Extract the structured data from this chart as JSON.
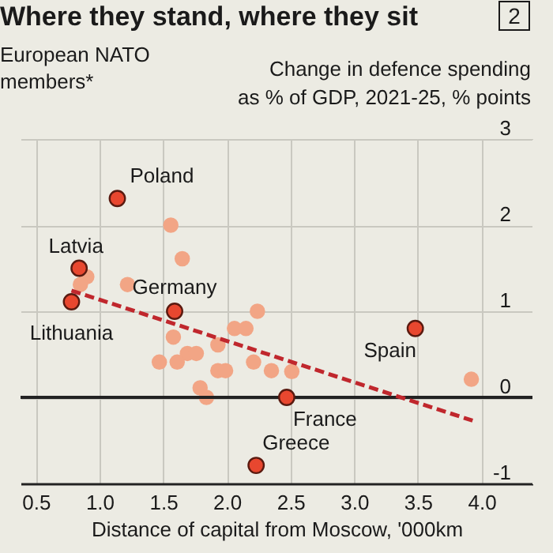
{
  "chart_data": {
    "type": "scatter",
    "title": "Where they stand, where they sit",
    "subtitle": "European NATO members*",
    "ylabel": "Change in defence spending as % of GDP, 2021-25, % points",
    "xlabel": "Distance of capital from Moscow, '000km",
    "xlim": [
      0.38,
      4.4
    ],
    "ylim": [
      -1,
      3
    ],
    "xticks": [
      0.5,
      {
        "value": 1,
        "label": "1.0"
      },
      1.5,
      {
        "value": 2,
        "label": "2.0"
      },
      2.5,
      {
        "value": 3,
        "label": "3.0"
      },
      3.5,
      {
        "value": 4,
        "label": "4.0"
      }
    ],
    "yticks": [
      -1,
      0,
      1,
      2,
      3
    ],
    "grid": true,
    "marker": "circle",
    "series": [
      {
        "color": "#f2a585",
        "x": [
          1.56,
          1.65,
          0.9,
          0.85,
          1.22,
          2.24,
          2.06,
          2.15,
          1.58,
          1.93,
          1.69,
          1.76,
          1.47,
          1.61,
          2.21,
          1.93,
          1.99,
          2.35,
          1.79,
          1.84,
          2.51,
          3.92
        ],
        "values": [
          2.0,
          1.61,
          1.4,
          1.31,
          1.31,
          1.0,
          0.8,
          0.8,
          0.7,
          0.61,
          0.51,
          0.51,
          0.41,
          0.41,
          0.41,
          0.31,
          0.31,
          0.31,
          0.11,
          0.0,
          0.3,
          0.21
        ]
      },
      {
        "color": "#e8472f",
        "x": [
          1.14,
          0.84,
          0.78,
          1.59,
          3.48,
          2.47,
          2.23
        ],
        "values": [
          2.31,
          1.5,
          1.11,
          1.0,
          0.8,
          0.0,
          -0.79
        ]
      },
      {
        "type": "line",
        "color": "#c0272d",
        "line_style": "dashed",
        "marker": "none",
        "x": [
          0.78,
          3.93
        ],
        "values": [
          1.24,
          -0.27
        ]
      }
    ],
    "ref_lines": [
      {
        "axis": "y",
        "value": 0,
        "color": "#222222"
      }
    ],
    "annotations": [
      {
        "text": "Poland",
        "x": 1.14,
        "y": 2.31
      },
      {
        "text": "Latvia",
        "x": 0.84,
        "y": 1.5
      },
      {
        "text": "Lithuania",
        "x": 0.78,
        "y": 1.11
      },
      {
        "text": "Germany",
        "x": 1.59,
        "y": 1.0
      },
      {
        "text": "Spain",
        "x": 3.48,
        "y": 0.8
      },
      {
        "text": "France",
        "x": 2.47,
        "y": 0.0
      },
      {
        "text": "Greece",
        "x": 2.23,
        "y": -0.79
      },
      "2"
    ]
  }
}
